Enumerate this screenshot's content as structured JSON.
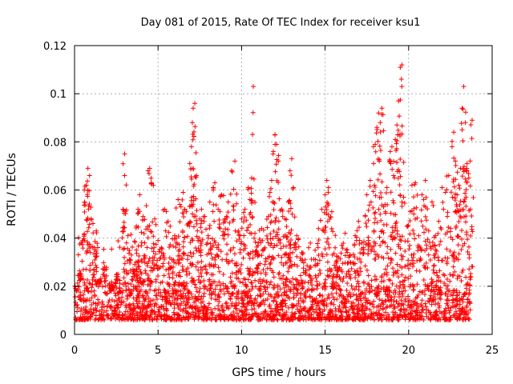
{
  "chart_data": {
    "type": "scatter",
    "title": "Day 081 of 2015, Rate Of TEC Index for receiver ksu1",
    "xlabel": "GPS time / hours",
    "ylabel": "ROTI / TECUs",
    "xlim": [
      0,
      25
    ],
    "ylim": [
      0,
      0.12
    ],
    "x_ticks": [
      0,
      5,
      10,
      15,
      20,
      25
    ],
    "x_tick_labels": [
      "0",
      "5",
      "10",
      "15",
      "20",
      "25"
    ],
    "y_ticks": [
      0,
      0.02,
      0.04,
      0.06,
      0.08,
      0.1,
      0.12
    ],
    "y_tick_labels": [
      "0",
      "0.02",
      "0.04",
      "0.06",
      "0.08",
      "0.1",
      "0.12"
    ],
    "grid": true,
    "marker": "+",
    "color": "#ff0000",
    "series": [
      {
        "name": "ROTI",
        "points": [
          [
            0.1,
            0.012
          ],
          [
            0.3,
            0.025
          ],
          [
            0.4,
            0.038
          ],
          [
            0.6,
            0.055
          ],
          [
            0.7,
            0.062
          ],
          [
            0.8,
            0.069
          ],
          [
            0.9,
            0.066
          ],
          [
            1.0,
            0.048
          ],
          [
            1.2,
            0.036
          ],
          [
            1.3,
            0.043
          ],
          [
            1.5,
            0.022
          ],
          [
            1.8,
            0.028
          ],
          [
            2.2,
            0.018
          ],
          [
            2.6,
            0.025
          ],
          [
            2.9,
            0.052
          ],
          [
            3.0,
            0.066
          ],
          [
            3.0,
            0.075
          ],
          [
            3.2,
            0.041
          ],
          [
            3.4,
            0.033
          ],
          [
            3.6,
            0.029
          ],
          [
            3.7,
            0.045
          ],
          [
            3.8,
            0.052
          ],
          [
            3.9,
            0.058
          ],
          [
            4.1,
            0.049
          ],
          [
            4.2,
            0.038
          ],
          [
            4.4,
            0.068
          ],
          [
            4.5,
            0.069
          ],
          [
            4.6,
            0.063
          ],
          [
            4.8,
            0.048
          ],
          [
            5.0,
            0.039
          ],
          [
            5.2,
            0.036
          ],
          [
            5.4,
            0.052
          ],
          [
            5.6,
            0.047
          ],
          [
            5.8,
            0.028
          ],
          [
            6.0,
            0.041
          ],
          [
            6.2,
            0.056
          ],
          [
            6.3,
            0.054
          ],
          [
            6.5,
            0.059
          ],
          [
            6.6,
            0.052
          ],
          [
            6.8,
            0.046
          ],
          [
            6.9,
            0.071
          ],
          [
            7.0,
            0.078
          ],
          [
            7.05,
            0.088
          ],
          [
            7.1,
            0.094
          ],
          [
            7.2,
            0.096
          ],
          [
            7.3,
            0.066
          ],
          [
            7.5,
            0.048
          ],
          [
            7.6,
            0.052
          ],
          [
            7.8,
            0.049
          ],
          [
            8.0,
            0.041
          ],
          [
            8.1,
            0.055
          ],
          [
            8.3,
            0.061
          ],
          [
            8.4,
            0.063
          ],
          [
            8.6,
            0.052
          ],
          [
            8.8,
            0.058
          ],
          [
            9.0,
            0.048
          ],
          [
            9.2,
            0.055
          ],
          [
            9.4,
            0.068
          ],
          [
            9.6,
            0.072
          ],
          [
            9.8,
            0.043
          ],
          [
            10.0,
            0.048
          ],
          [
            10.2,
            0.052
          ],
          [
            10.4,
            0.061
          ],
          [
            10.5,
            0.056
          ],
          [
            10.6,
            0.065
          ],
          [
            10.7,
            0.103
          ],
          [
            10.8,
            0.042
          ],
          [
            11.0,
            0.038
          ],
          [
            11.2,
            0.044
          ],
          [
            11.4,
            0.036
          ],
          [
            11.6,
            0.049
          ],
          [
            11.7,
            0.059
          ],
          [
            11.8,
            0.064
          ],
          [
            11.9,
            0.076
          ],
          [
            12.0,
            0.083
          ],
          [
            12.1,
            0.079
          ],
          [
            12.2,
            0.072
          ],
          [
            12.4,
            0.052
          ],
          [
            12.6,
            0.048
          ],
          [
            12.8,
            0.055
          ],
          [
            12.9,
            0.068
          ],
          [
            13.0,
            0.073
          ],
          [
            13.1,
            0.061
          ],
          [
            13.3,
            0.041
          ],
          [
            13.6,
            0.034
          ],
          [
            13.8,
            0.031
          ],
          [
            14.1,
            0.028
          ],
          [
            14.4,
            0.035
          ],
          [
            14.6,
            0.044
          ],
          [
            14.8,
            0.052
          ],
          [
            15.0,
            0.058
          ],
          [
            15.1,
            0.064
          ],
          [
            15.2,
            0.061
          ],
          [
            15.4,
            0.051
          ],
          [
            15.6,
            0.036
          ],
          [
            15.8,
            0.032
          ],
          [
            16.0,
            0.037
          ],
          [
            16.2,
            0.042
          ],
          [
            16.5,
            0.033
          ],
          [
            16.8,
            0.041
          ],
          [
            17.0,
            0.047
          ],
          [
            17.2,
            0.038
          ],
          [
            17.5,
            0.058
          ],
          [
            17.7,
            0.064
          ],
          [
            17.9,
            0.071
          ],
          [
            18.0,
            0.079
          ],
          [
            18.1,
            0.086
          ],
          [
            18.2,
            0.092
          ],
          [
            18.3,
            0.088
          ],
          [
            18.4,
            0.094
          ],
          [
            18.5,
            0.053
          ],
          [
            18.7,
            0.061
          ],
          [
            18.9,
            0.076
          ],
          [
            19.0,
            0.078
          ],
          [
            19.1,
            0.066
          ],
          [
            19.2,
            0.081
          ],
          [
            19.3,
            0.087
          ],
          [
            19.4,
            0.097
          ],
          [
            19.5,
            0.111
          ],
          [
            19.6,
            0.112
          ],
          [
            19.7,
            0.057
          ],
          [
            19.9,
            0.045
          ],
          [
            20.1,
            0.051
          ],
          [
            20.2,
            0.062
          ],
          [
            20.4,
            0.063
          ],
          [
            20.6,
            0.041
          ],
          [
            20.8,
            0.058
          ],
          [
            21.0,
            0.064
          ],
          [
            21.2,
            0.043
          ],
          [
            21.4,
            0.055
          ],
          [
            21.6,
            0.041
          ],
          [
            21.8,
            0.047
          ],
          [
            22.0,
            0.061
          ],
          [
            22.2,
            0.059
          ],
          [
            22.4,
            0.066
          ],
          [
            22.6,
            0.078
          ],
          [
            22.7,
            0.084
          ],
          [
            22.8,
            0.072
          ],
          [
            22.9,
            0.058
          ],
          [
            23.0,
            0.062
          ],
          [
            23.1,
            0.069
          ],
          [
            23.2,
            0.094
          ],
          [
            23.3,
            0.103
          ],
          [
            23.4,
            0.088
          ],
          [
            23.5,
            0.071
          ],
          [
            23.6,
            0.065
          ],
          [
            23.7,
            0.052
          ],
          [
            23.8,
            0.089
          ]
        ],
        "background_band": [
          0.006,
          0.022
        ],
        "background_density_per_hour": 90
      }
    ]
  }
}
